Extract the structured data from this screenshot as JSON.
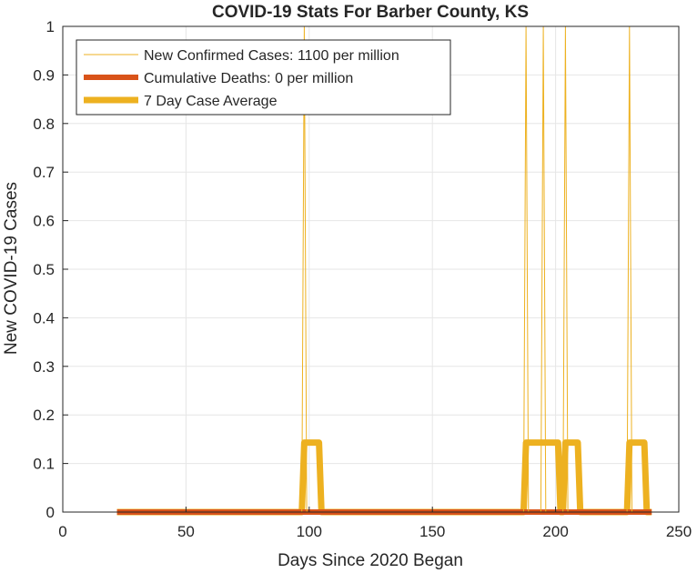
{
  "chart_data": {
    "type": "line",
    "title": "COVID-19 Stats For Barber County, KS",
    "xlabel": "Days Since 2020 Began",
    "ylabel": "New COVID-19 Cases",
    "xlim": [
      0,
      250
    ],
    "ylim": [
      0,
      1
    ],
    "xticks": [
      "0",
      "50",
      "100",
      "150",
      "200",
      "250"
    ],
    "yticks": [
      "0",
      "0.1",
      "0.2",
      "0.3",
      "0.4",
      "0.5",
      "0.6",
      "0.7",
      "0.8",
      "0.9",
      "1"
    ],
    "grid": true,
    "legend_position": "top-left",
    "series": [
      {
        "name": "New Confirmed Cases: 1100 per million",
        "color": "#EDB120",
        "style": "thin",
        "x": [
          22,
          97,
          98,
          99,
          100,
          187,
          188,
          189,
          194,
          195,
          196,
          203,
          204,
          205,
          229,
          230,
          231,
          239
        ],
        "y": [
          0,
          0,
          1,
          0,
          0,
          0,
          1,
          0,
          0,
          1,
          0,
          0,
          1,
          0,
          0,
          1,
          0,
          0
        ]
      },
      {
        "name": "Cumulative Deaths: 0 per million",
        "color": "#D95319",
        "style": "thick",
        "x": [
          22,
          239
        ],
        "y": [
          0,
          0
        ]
      },
      {
        "name": "7 Day Case Average",
        "color": "#EDB120",
        "style": "thicker",
        "x": [
          22,
          97,
          98,
          104,
          105,
          187,
          188,
          201,
          202,
          203,
          204,
          209,
          210,
          229,
          230,
          236,
          237,
          239
        ],
        "y": [
          0,
          0,
          0.143,
          0.143,
          0,
          0,
          0.143,
          0.143,
          0,
          0,
          0.143,
          0.143,
          0,
          0,
          0.143,
          0.143,
          0,
          0
        ]
      }
    ]
  }
}
